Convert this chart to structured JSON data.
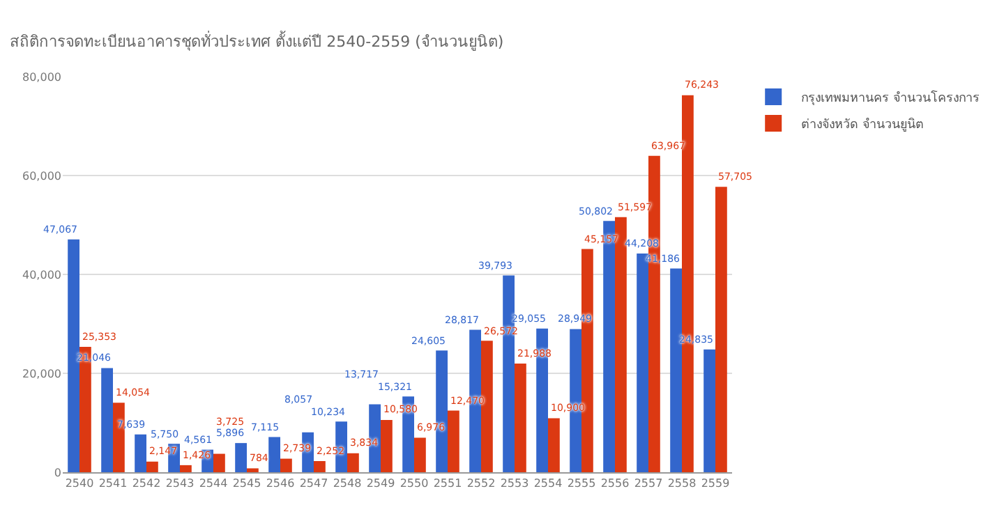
{
  "chart_data": {
    "type": "bar",
    "title": "สถิติการจดทะเบียนอาคารชุดทั่วประเทศ ตั้งแต่ปี 2540-2559 (จำนวนยูนิต)",
    "categories": [
      "2540",
      "2541",
      "2542",
      "2543",
      "2544",
      "2545",
      "2546",
      "2547",
      "2548",
      "2549",
      "2550",
      "2551",
      "2552",
      "2553",
      "2554",
      "2555",
      "2556",
      "2557",
      "2558",
      "2559"
    ],
    "series": [
      {
        "name": "กรุงเทพมหานคร จำนวนโครงการ",
        "color": "#3366cc",
        "values": [
          47067,
          21046,
          7639,
          5750,
          4561,
          5896,
          7115,
          8057,
          10234,
          13717,
          15321,
          24605,
          28817,
          39793,
          29055,
          28949,
          50802,
          44208,
          41186,
          24835
        ],
        "value_labels": [
          "47,067",
          "21,046",
          "7,639",
          "5,750",
          "4,561",
          "5,896",
          "7,115",
          "8,057",
          "10,234",
          "13,717",
          "15,321",
          "24,605",
          "28,817",
          "39,793",
          "29,055",
          "28,949",
          "50,802",
          "44,208",
          "41,186",
          "24,835"
        ]
      },
      {
        "name": "ต่างจังหวัด จำนวนยูนิต",
        "color": "#dc3912",
        "values": [
          25353,
          14054,
          2147,
          1426,
          3725,
          784,
          2739,
          2252,
          3834,
          10580,
          6976,
          12470,
          26572,
          21988,
          10900,
          45157,
          51597,
          63967,
          76243,
          57705
        ],
        "value_labels": [
          "25,353",
          "14,054",
          "2,147",
          "1,426",
          "3,725",
          "784",
          "2,739",
          "2,252",
          "3,834",
          "10,580",
          "6,976",
          "12,470",
          "26,572",
          "21,988",
          "10,900",
          "45,157",
          "51,597",
          "63,967",
          "76,243",
          "57,705"
        ]
      }
    ],
    "ylim": [
      0,
      80000
    ],
    "yticks": [
      {
        "value": 0,
        "label": "0"
      },
      {
        "value": 20000,
        "label": "20,000"
      },
      {
        "value": 40000,
        "label": "40,000"
      },
      {
        "value": 60000,
        "label": "60,000"
      },
      {
        "value": 80000,
        "label": "80,000"
      }
    ],
    "grid": "y",
    "legend": "top right"
  }
}
